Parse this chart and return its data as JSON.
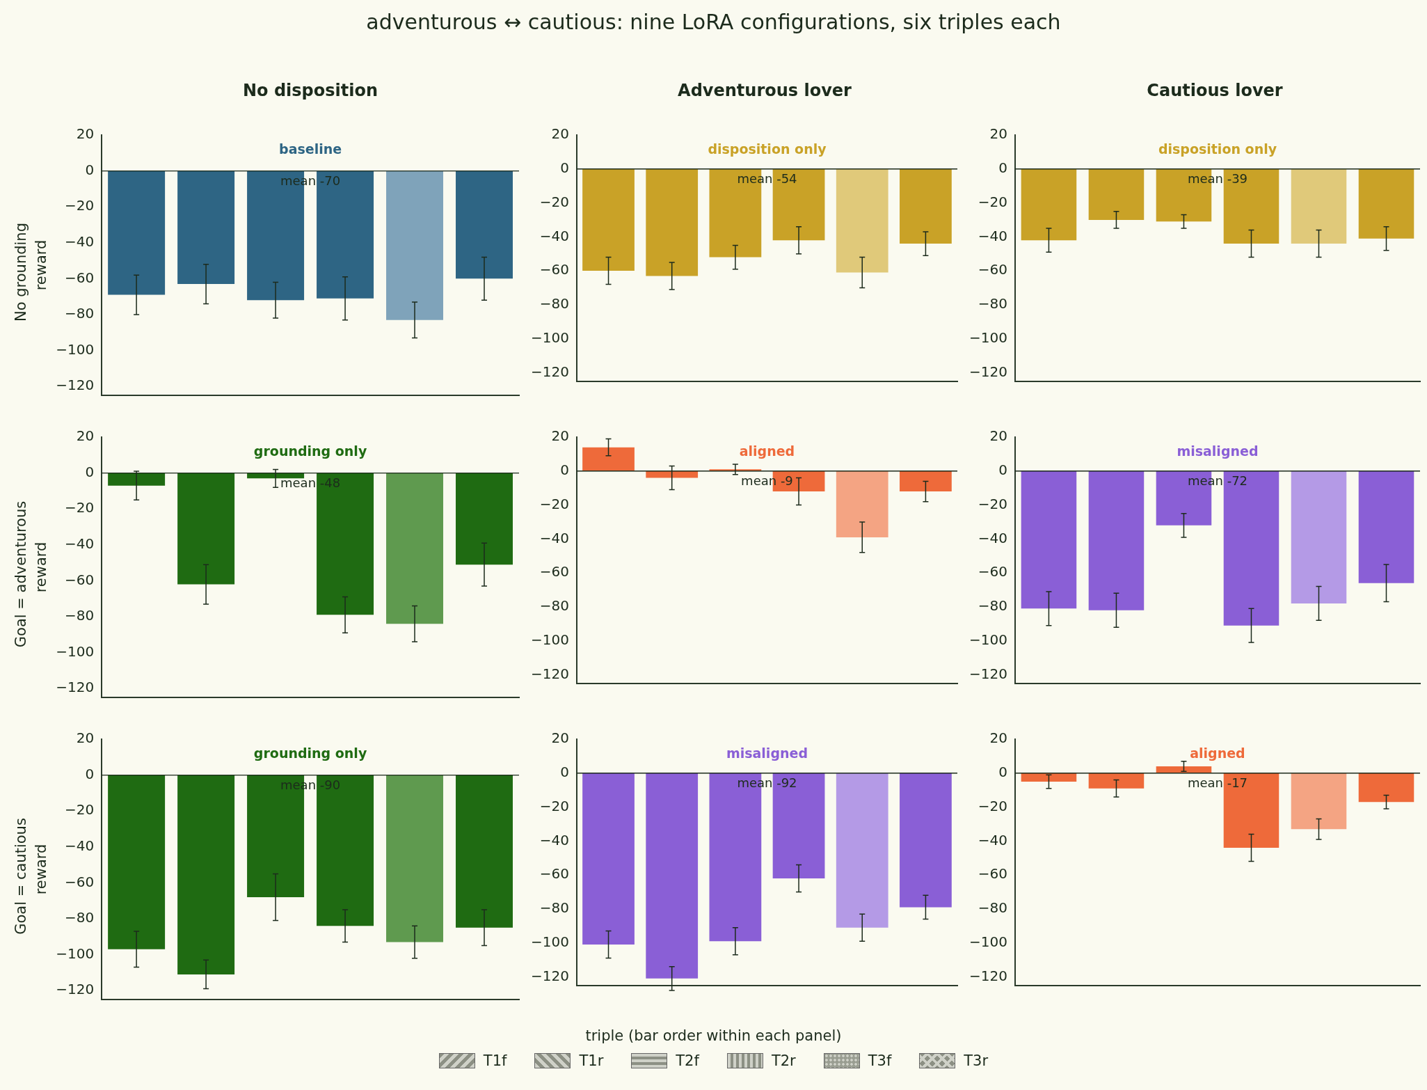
{
  "chart_data": [
    {
      "type": "bar",
      "ylabel": "reward",
      "tick_labels": "y",
      "categories": [
        null,
        null,
        null,
        null,
        null,
        null
      ],
      "values": [
        -69,
        -63,
        -72,
        -71,
        -83,
        -60
      ],
      "errors": [
        11,
        11,
        10,
        12,
        10,
        12
      ],
      "colors": [
        "#2e6584",
        "#2e6584",
        "#2e6584",
        "#2e6584",
        "#7fa3ba",
        "#2e6584"
      ],
      "ylim": [
        -125,
        20
      ],
      "yticks": [
        -120,
        -100,
        -80,
        -60,
        -40,
        -20,
        0,
        20
      ],
      "ref_lines": [
        {
          "axis": "y",
          "value": 0
        }
      ],
      "annotations": [
        "baseline",
        "mean -70"
      ]
    },
    {
      "type": "bar",
      "categories": [
        null,
        null,
        null,
        null,
        null,
        null
      ],
      "values": [
        -60,
        -63,
        -52,
        -42,
        -61,
        -44
      ],
      "errors": [
        8,
        8,
        7,
        8,
        9,
        7
      ],
      "colors": [
        "#c9a227",
        "#c9a227",
        "#c9a227",
        "#c9a227",
        "#e0c97a",
        "#c9a227"
      ],
      "ylim": [
        -125,
        20
      ],
      "yticks": [
        -120,
        -100,
        -80,
        -60,
        -40,
        -20,
        0,
        20
      ],
      "ref_lines": [
        {
          "axis": "y",
          "value": 0
        }
      ],
      "annotations": [
        "disposition only",
        "mean -54"
      ]
    },
    {
      "type": "bar",
      "categories": [
        null,
        null,
        null,
        null,
        null,
        null
      ],
      "values": [
        -42,
        -30,
        -31,
        -44,
        -44,
        -41
      ],
      "errors": [
        7,
        5,
        4,
        8,
        8,
        7
      ],
      "colors": [
        "#c9a227",
        "#c9a227",
        "#c9a227",
        "#c9a227",
        "#e0c97a",
        "#c9a227"
      ],
      "ylim": [
        -125,
        20
      ],
      "yticks": [
        -120,
        -100,
        -80,
        -60,
        -40,
        -20,
        0,
        20
      ],
      "ref_lines": [
        {
          "axis": "y",
          "value": 0
        }
      ],
      "annotations": [
        "disposition only",
        "mean -39"
      ]
    },
    {
      "type": "bar",
      "ylabel": "reward",
      "tick_labels": "y",
      "categories": [
        null,
        null,
        null,
        null,
        null,
        null
      ],
      "values": [
        -7,
        -62,
        -3,
        -79,
        -84,
        -51
      ],
      "errors": [
        8,
        11,
        5,
        10,
        10,
        12
      ],
      "colors": [
        "#1f6b12",
        "#1f6b12",
        "#1f6b12",
        "#1f6b12",
        "#5f9a4f",
        "#1f6b12"
      ],
      "ylim": [
        -125,
        20
      ],
      "yticks": [
        -120,
        -100,
        -80,
        -60,
        -40,
        -20,
        0,
        20
      ],
      "ref_lines": [
        {
          "axis": "y",
          "value": 0
        }
      ],
      "annotations": [
        "grounding only",
        "mean -48"
      ]
    },
    {
      "type": "bar",
      "categories": [
        null,
        null,
        null,
        null,
        null,
        null
      ],
      "values": [
        14,
        -4,
        1,
        -12,
        -39,
        -12
      ],
      "errors": [
        5,
        7,
        3,
        8,
        9,
        6
      ],
      "colors": [
        "#ee6a3a",
        "#ee6a3a",
        "#ee6a3a",
        "#ee6a3a",
        "#f4a483",
        "#ee6a3a"
      ],
      "ylim": [
        -125,
        20
      ],
      "yticks": [
        -120,
        -100,
        -80,
        -60,
        -40,
        -20,
        0,
        20
      ],
      "ref_lines": [
        {
          "axis": "y",
          "value": 0
        }
      ],
      "annotations": [
        "aligned",
        "mean -9"
      ]
    },
    {
      "type": "bar",
      "categories": [
        null,
        null,
        null,
        null,
        null,
        null
      ],
      "values": [
        -81,
        -82,
        -32,
        -91,
        -78,
        -66
      ],
      "errors": [
        10,
        10,
        7,
        10,
        10,
        11
      ],
      "colors": [
        "#8a5fd6",
        "#8a5fd6",
        "#8a5fd6",
        "#8a5fd6",
        "#b49ae6",
        "#8a5fd6"
      ],
      "ylim": [
        -125,
        20
      ],
      "yticks": [
        -120,
        -100,
        -80,
        -60,
        -40,
        -20,
        0,
        20
      ],
      "ref_lines": [
        {
          "axis": "y",
          "value": 0
        }
      ],
      "annotations": [
        "misaligned",
        "mean -72"
      ]
    },
    {
      "type": "bar",
      "ylabel": "reward",
      "tick_labels": "y",
      "categories": [
        null,
        null,
        null,
        null,
        null,
        null
      ],
      "values": [
        -97,
        -111,
        -68,
        -84,
        -93,
        -85
      ],
      "errors": [
        10,
        8,
        13,
        9,
        9,
        10
      ],
      "colors": [
        "#1f6b12",
        "#1f6b12",
        "#1f6b12",
        "#1f6b12",
        "#5f9a4f",
        "#1f6b12"
      ],
      "ylim": [
        -125,
        20
      ],
      "yticks": [
        -120,
        -100,
        -80,
        -60,
        -40,
        -20,
        0,
        20
      ],
      "ref_lines": [
        {
          "axis": "y",
          "value": 0
        }
      ],
      "annotations": [
        "grounding only",
        "mean -90"
      ]
    },
    {
      "type": "bar",
      "categories": [
        null,
        null,
        null,
        null,
        null,
        null
      ],
      "values": [
        -101,
        -121,
        -99,
        -62,
        -91,
        -79
      ],
      "errors": [
        8,
        7,
        8,
        8,
        8,
        7
      ],
      "colors": [
        "#8a5fd6",
        "#8a5fd6",
        "#8a5fd6",
        "#8a5fd6",
        "#b49ae6",
        "#8a5fd6"
      ],
      "ylim": [
        -125,
        20
      ],
      "yticks": [
        -120,
        -100,
        -80,
        -60,
        -40,
        -20,
        0,
        20
      ],
      "ref_lines": [
        {
          "axis": "y",
          "value": 0
        }
      ],
      "annotations": [
        "misaligned",
        "mean -92"
      ]
    },
    {
      "type": "bar",
      "categories": [
        null,
        null,
        null,
        null,
        null,
        null
      ],
      "values": [
        -5,
        -9,
        4,
        -44,
        -33,
        -17
      ],
      "errors": [
        4,
        5,
        3,
        8,
        6,
        4
      ],
      "colors": [
        "#ee6a3a",
        "#ee6a3a",
        "#ee6a3a",
        "#ee6a3a",
        "#f4a483",
        "#ee6a3a"
      ],
      "ylim": [
        -125,
        20
      ],
      "yticks": [
        -120,
        -100,
        -80,
        -60,
        -40,
        -20,
        0,
        20
      ],
      "ref_lines": [
        {
          "axis": "y",
          "value": 0
        }
      ],
      "annotations": [
        "aligned",
        "mean -17"
      ]
    },
    {
      "type": "other",
      "title": "adventurous ↔ cautious: nine LoRA configurations, six triples each",
      "categories": [
        "No disposition",
        "Adventurous lover",
        "Cautious lover"
      ],
      "y_categories": [
        "No grounding",
        "Goal = adventurous",
        "Goal = cautious"
      ],
      "xlabel": "triple (bar order within each panel)",
      "annotations": [
        "T1f",
        "T1r",
        "T2f",
        "T2r",
        "T3f",
        "T3r"
      ]
    }
  ]
}
